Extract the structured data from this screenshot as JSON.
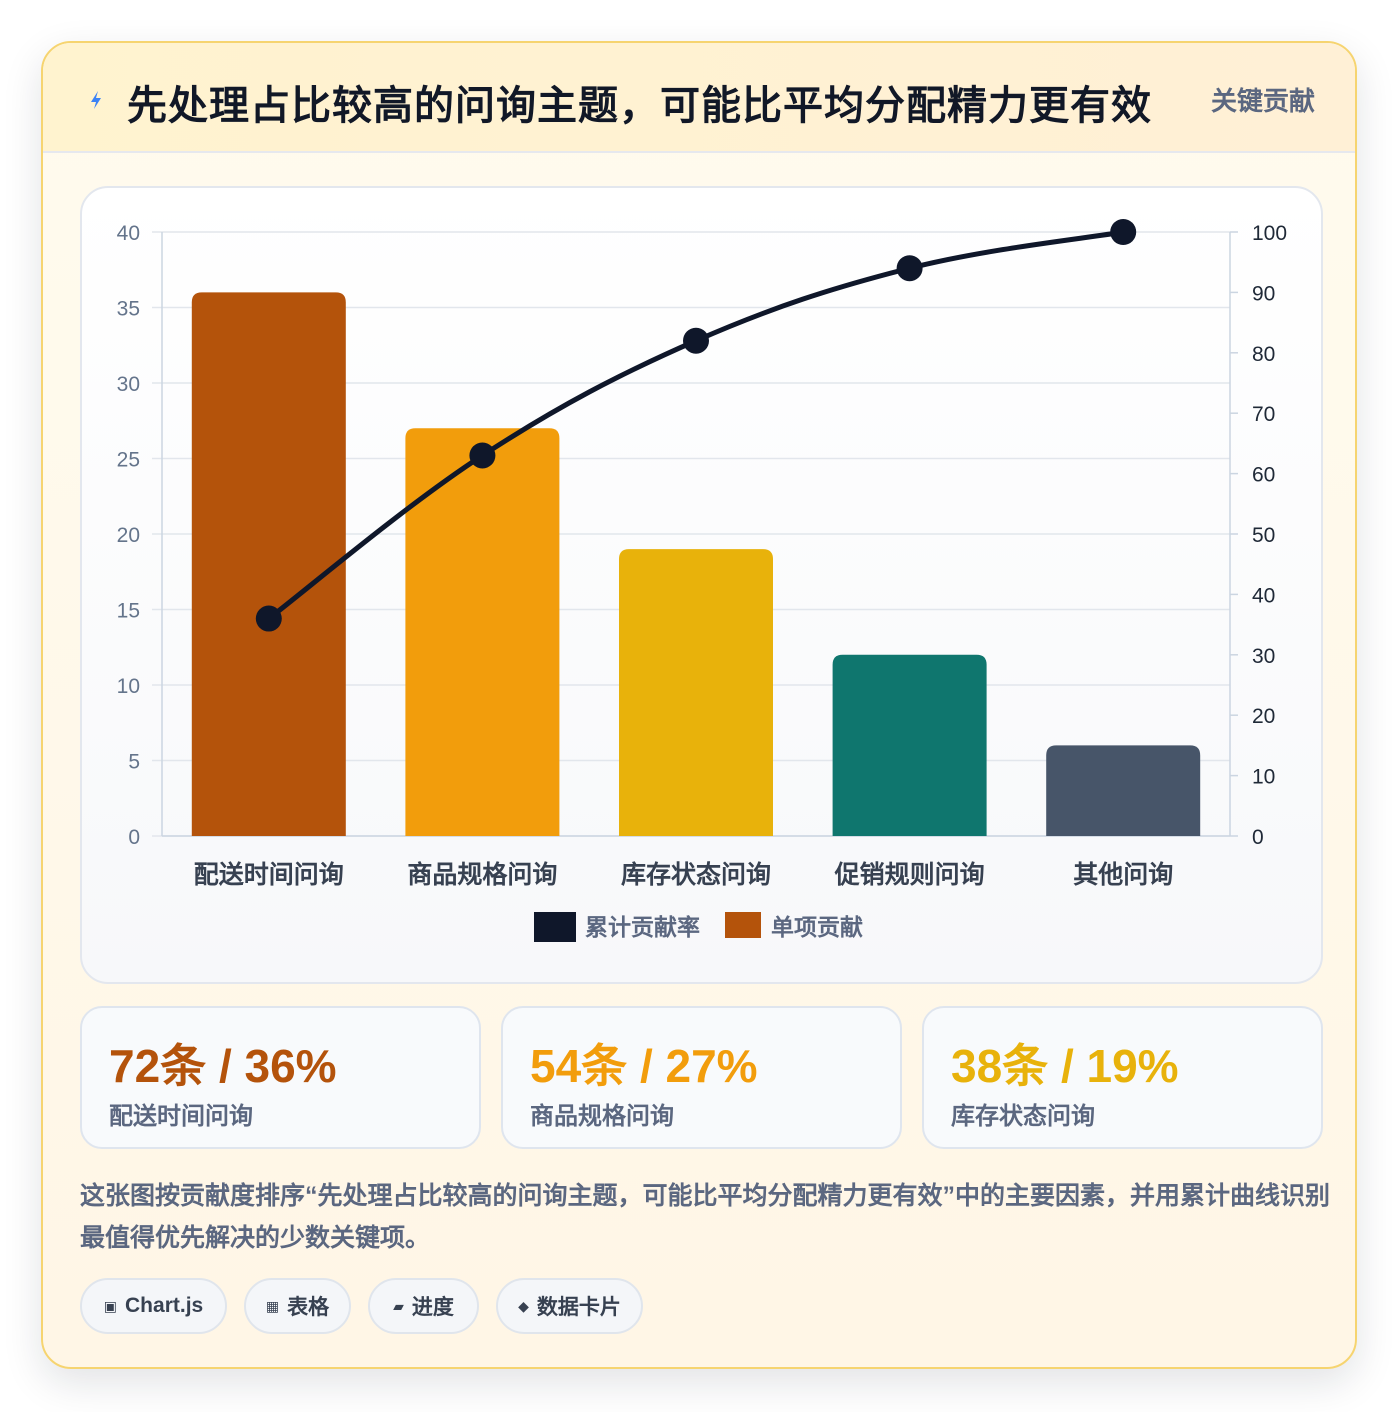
{
  "header": {
    "title": "先处理占比较高的问询主题，可能比平均分配精力更有效",
    "badge": "关键贡献",
    "icon": "lightning-icon"
  },
  "chart_data": {
    "type": "bar",
    "categories": [
      "配送时间问询",
      "商品规格问询",
      "库存状态问询",
      "促销规则问询",
      "其他问询"
    ],
    "series": [
      {
        "name": "单项贡献",
        "type": "bar",
        "axis": "left",
        "values": [
          36,
          27,
          19,
          12,
          6
        ],
        "colors": [
          "#b4530b",
          "#f29d0c",
          "#e8b20b",
          "#0f766e",
          "#475569"
        ]
      },
      {
        "name": "累计贡献率",
        "type": "line",
        "axis": "right",
        "values": [
          36,
          63,
          82,
          94,
          100
        ],
        "color": "#0f172a"
      }
    ],
    "y_left": {
      "min": 0,
      "max": 40,
      "step": 5
    },
    "y_right": {
      "min": 0,
      "max": 100,
      "step": 10
    },
    "legend": [
      "累计贡献率",
      "单项贡献"
    ],
    "legend_position": "bottom",
    "grid": true
  },
  "kpis": [
    {
      "value": "72条 / 36%",
      "label": "配送时间问询",
      "color": "#b4530b"
    },
    {
      "value": "54条 / 27%",
      "label": "商品规格问询",
      "color": "#f29d0c"
    },
    {
      "value": "38条 / 19%",
      "label": "库存状态问询",
      "color": "#e8b20b"
    }
  ],
  "description": "这张图按贡献度排序“先处理占比较高的问询主题，可能比平均分配精力更有效”中的主要因素，并用累计曲线识别最值得优先解决的少数关键项。",
  "tags": [
    {
      "icon": "▣",
      "label": "Chart.js"
    },
    {
      "icon": "▦",
      "label": "表格"
    },
    {
      "icon": "▰",
      "label": "进度"
    },
    {
      "icon": "◆",
      "label": "数据卡片"
    }
  ]
}
